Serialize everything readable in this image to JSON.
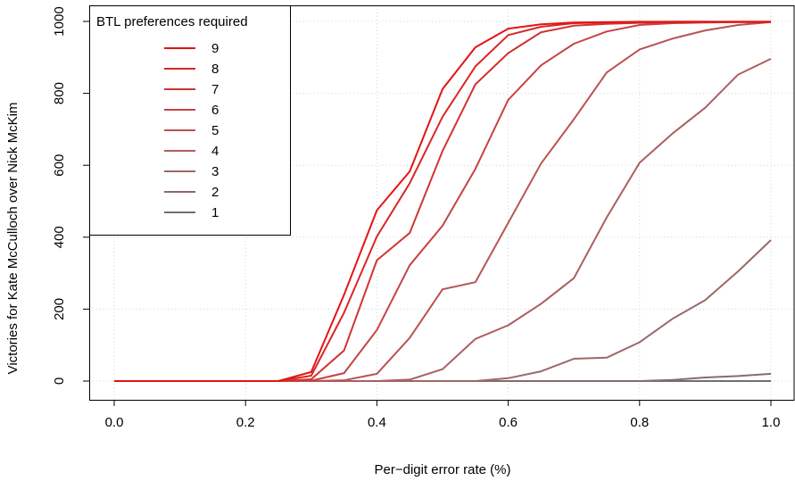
{
  "chart_data": {
    "type": "line",
    "title": "",
    "xlabel": "Per−digit error rate (%)",
    "ylabel": "Victories for Kate McCulloch over Nick McKim",
    "xlim": [
      0.0,
      1.0
    ],
    "ylim": [
      0,
      1000
    ],
    "x_ticks": [
      "0.0",
      "0.2",
      "0.4",
      "0.6",
      "0.8",
      "1.0"
    ],
    "y_ticks": [
      "0",
      "200",
      "400",
      "600",
      "800",
      "1000"
    ],
    "grid": true,
    "legend": {
      "title": "BTL preferences required",
      "position": "top-left"
    },
    "x": [
      0.0,
      0.05,
      0.1,
      0.15,
      0.2,
      0.25,
      0.3,
      0.35,
      0.4,
      0.45,
      0.5,
      0.55,
      0.6,
      0.65,
      0.7,
      0.75,
      0.8,
      0.85,
      0.9,
      0.95,
      1.0
    ],
    "series": [
      {
        "name": "9",
        "color": "#e41313",
        "values": [
          0,
          0,
          0,
          0,
          0,
          0,
          25,
          240,
          475,
          583,
          812,
          928,
          980,
          992,
          997,
          998,
          999,
          999,
          999,
          999,
          999
        ]
      },
      {
        "name": "8",
        "color": "#db2525",
        "values": [
          0,
          0,
          0,
          0,
          0,
          0,
          15,
          190,
          402,
          550,
          735,
          875,
          962,
          985,
          995,
          997,
          998,
          999,
          999,
          999,
          999
        ]
      },
      {
        "name": "7",
        "color": "#d13333",
        "values": [
          0,
          0,
          0,
          0,
          0,
          0,
          5,
          85,
          336,
          412,
          640,
          825,
          912,
          970,
          988,
          993,
          996,
          997,
          998,
          998,
          998
        ]
      },
      {
        "name": "6",
        "color": "#c64343",
        "values": [
          0,
          0,
          0,
          0,
          0,
          0,
          1,
          22,
          142,
          322,
          432,
          590,
          782,
          878,
          938,
          972,
          990,
          995,
          997,
          998,
          998
        ]
      },
      {
        "name": "5",
        "color": "#b95252",
        "values": [
          0,
          0,
          0,
          0,
          0,
          0,
          0,
          2,
          20,
          120,
          255,
          275,
          440,
          605,
          728,
          858,
          922,
          952,
          975,
          990,
          998
        ]
      },
      {
        "name": "4",
        "color": "#ab5f5f",
        "values": [
          0,
          0,
          0,
          0,
          0,
          0,
          0,
          0,
          0,
          4,
          33,
          117,
          155,
          215,
          286,
          455,
          607,
          688,
          760,
          852,
          896
        ]
      },
      {
        "name": "3",
        "color": "#9c6868",
        "values": [
          0,
          0,
          0,
          0,
          0,
          0,
          0,
          0,
          0,
          0,
          0,
          0,
          8,
          27,
          62,
          65,
          108,
          173,
          225,
          305,
          392
        ]
      },
      {
        "name": "2",
        "color": "#8a6a6a",
        "values": [
          0,
          0,
          0,
          0,
          0,
          0,
          0,
          0,
          0,
          0,
          0,
          0,
          0,
          0,
          0,
          0,
          0,
          3,
          10,
          14,
          20
        ]
      },
      {
        "name": "1",
        "color": "#707070",
        "values": [
          0,
          0,
          0,
          0,
          0,
          0,
          0,
          0,
          0,
          0,
          0,
          0,
          0,
          0,
          0,
          0,
          0,
          0,
          0,
          0,
          0
        ]
      }
    ]
  }
}
